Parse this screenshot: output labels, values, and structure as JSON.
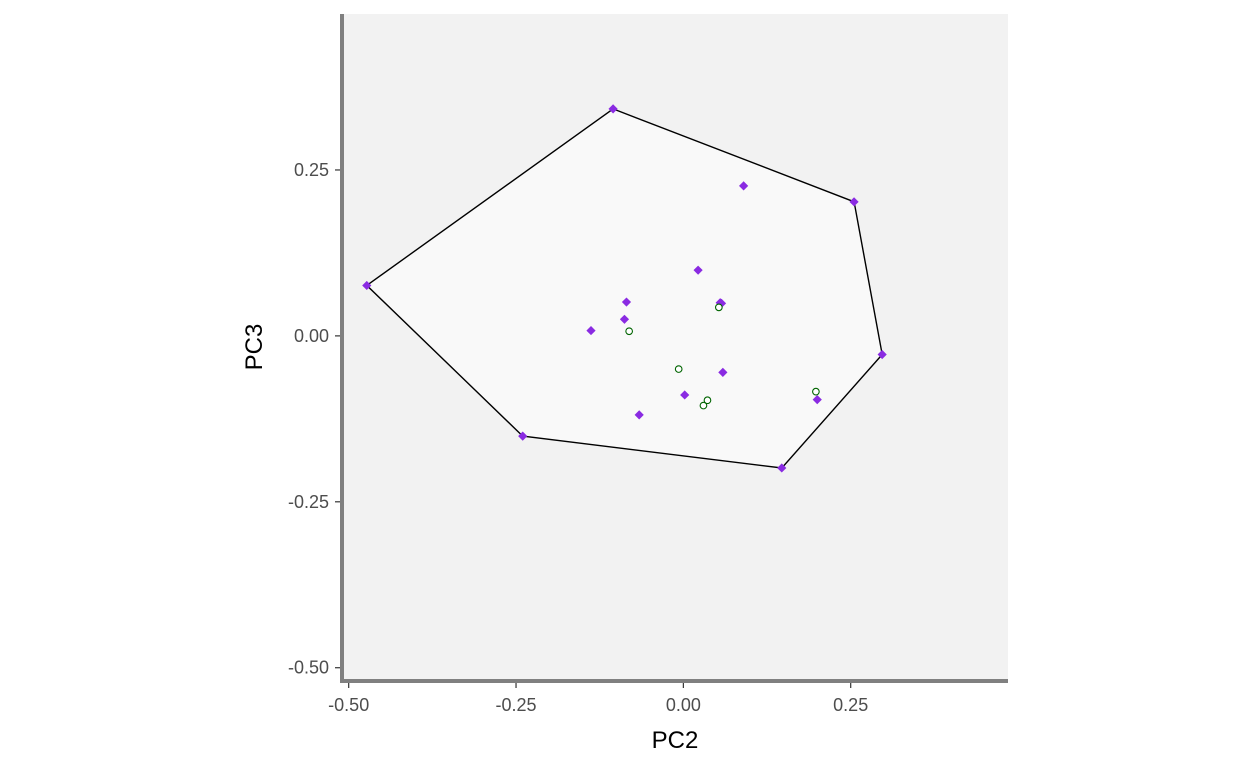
{
  "chart_data": {
    "type": "scatter",
    "title": "",
    "xlabel": "PC2",
    "ylabel": "PC3",
    "xlim": [
      -0.51,
      0.485
    ],
    "ylim": [
      -0.52,
      0.485
    ],
    "x_ticks": [
      -0.5,
      -0.25,
      0,
      0.25
    ],
    "x_tick_labels": [
      "-0.50",
      "-0.25",
      "0.00",
      "0.25"
    ],
    "y_ticks": [
      -0.5,
      -0.25,
      0,
      0.25
    ],
    "y_tick_labels": [
      "-0.50",
      "-0.25",
      "0.00",
      "0.25"
    ],
    "grid": false,
    "legend": "none",
    "colors": {
      "panel_background": "#f2f2f2",
      "hull_fill": "#f9f9f9",
      "hull_stroke": "#000000",
      "axis_line": "#808080",
      "diamond": "#8a2be2",
      "circle_stroke": "#006400",
      "circle_fill": "#ffffff"
    },
    "hull": [
      {
        "x": -0.105,
        "y": 0.342
      },
      {
        "x": 0.255,
        "y": 0.202
      },
      {
        "x": 0.297,
        "y": -0.028
      },
      {
        "x": 0.147,
        "y": -0.199
      },
      {
        "x": -0.24,
        "y": -0.151
      },
      {
        "x": -0.473,
        "y": 0.076
      }
    ],
    "series": [
      {
        "marker": "diamond",
        "points": [
          {
            "x": -0.105,
            "y": 0.342
          },
          {
            "x": 0.09,
            "y": 0.226
          },
          {
            "x": 0.255,
            "y": 0.202
          },
          {
            "x": -0.473,
            "y": 0.076
          },
          {
            "x": 0.022,
            "y": 0.099
          },
          {
            "x": -0.085,
            "y": 0.051
          },
          {
            "x": 0.055,
            "y": 0.05
          },
          {
            "x": 0.057,
            "y": 0.049
          },
          {
            "x": -0.088,
            "y": 0.025
          },
          {
            "x": -0.138,
            "y": 0.008
          },
          {
            "x": 0.297,
            "y": -0.028
          },
          {
            "x": 0.059,
            "y": -0.055
          },
          {
            "x": 0.002,
            "y": -0.089
          },
          {
            "x": 0.2,
            "y": -0.096
          },
          {
            "x": -0.066,
            "y": -0.119
          },
          {
            "x": -0.24,
            "y": -0.151
          },
          {
            "x": 0.147,
            "y": -0.199
          }
        ]
      },
      {
        "marker": "circle",
        "points": [
          {
            "x": 0.053,
            "y": 0.043
          },
          {
            "x": -0.081,
            "y": 0.007
          },
          {
            "x": -0.007,
            "y": -0.05
          },
          {
            "x": 0.198,
            "y": -0.084
          },
          {
            "x": 0.036,
            "y": -0.097
          },
          {
            "x": 0.03,
            "y": -0.105
          }
        ]
      }
    ]
  }
}
